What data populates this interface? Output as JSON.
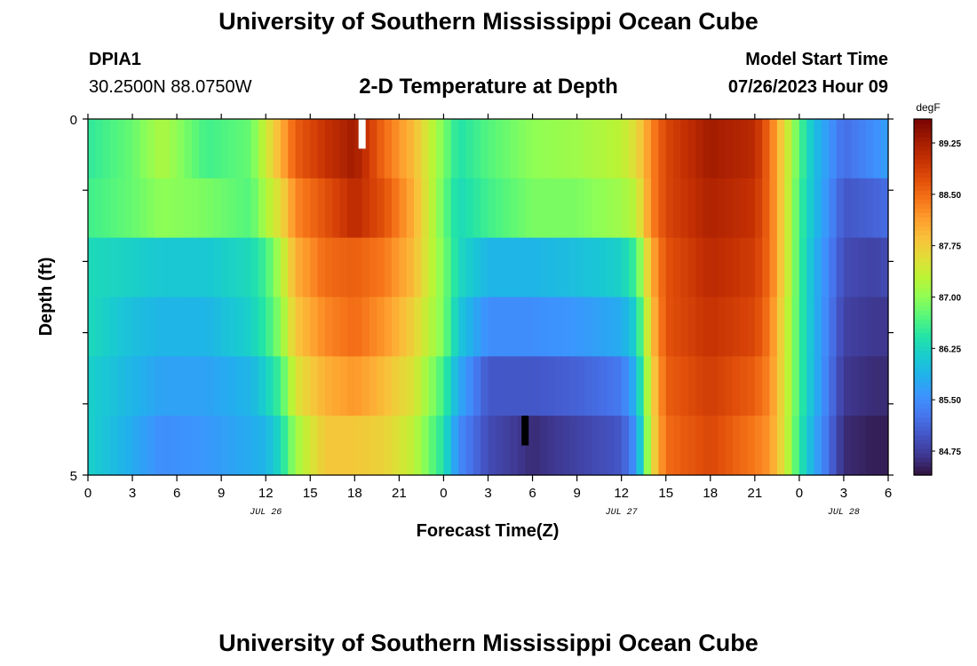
{
  "header": {
    "title": "University of Southern Mississippi Ocean Cube",
    "station_id": "DPIA1",
    "coords": "30.2500N  88.0750W",
    "plot_title": "2-D Temperature at Depth",
    "start_label": "Model Start Time",
    "start_value": "07/26/2023 Hour 09"
  },
  "footer": {
    "title": "University of Southern Mississippi Ocean Cube"
  },
  "chart_data": {
    "type": "heatmap",
    "xlabel": "Forecast Time(Z)",
    "ylabel": "Depth (ft)",
    "x_range_hours": [
      0,
      54
    ],
    "x_tick_labels": [
      "0",
      "3",
      "6",
      "9",
      "12",
      "15",
      "18",
      "21",
      "0",
      "3",
      "6",
      "9",
      "12",
      "15",
      "18",
      "21",
      "0",
      "3",
      "6"
    ],
    "date_labels": [
      {
        "label": "JUL 26",
        "at_hour": 12
      },
      {
        "label": "JUL 27",
        "at_hour": 36
      },
      {
        "label": "JUL 28",
        "at_hour": 51
      }
    ],
    "y_range": [
      0,
      5
    ],
    "y_tick_labels": [
      "0",
      "5"
    ],
    "depth_levels": 6,
    "colorbar": {
      "unit": "degF",
      "min": 84.4,
      "max": 89.6,
      "tick_labels": [
        "84.75",
        "85.50",
        "86.25",
        "87.00",
        "87.75",
        "88.50",
        "89.25"
      ],
      "tick_values": [
        84.75,
        85.5,
        86.25,
        87.0,
        87.75,
        88.5,
        89.25
      ],
      "colors": [
        "#30123b",
        "#3e378f",
        "#4454c4",
        "#4675ed",
        "#3d93fe",
        "#21b0ec",
        "#19cbd0",
        "#22e3a8",
        "#54f67c",
        "#8ffe55",
        "#bbf335",
        "#e1dd37",
        "#f9c13a",
        "#fe9d2e",
        "#f57217",
        "#e04e0a",
        "#c42f03",
        "#a01b01",
        "#7a0403"
      ]
    },
    "profiles": [
      {
        "hour": 0,
        "values": [
          86.5,
          86.6,
          86.3,
          86.3,
          86.2,
          86.2
        ]
      },
      {
        "hour": 3,
        "values": [
          86.8,
          86.8,
          86.2,
          86.0,
          85.9,
          85.8
        ]
      },
      {
        "hour": 5,
        "values": [
          87.2,
          87.0,
          86.1,
          85.9,
          85.7,
          85.5
        ]
      },
      {
        "hour": 8,
        "values": [
          86.6,
          86.9,
          86.1,
          85.9,
          85.7,
          85.6
        ]
      },
      {
        "hour": 11,
        "values": [
          86.8,
          86.7,
          86.3,
          86.2,
          85.9,
          85.8
        ]
      },
      {
        "hour": 12,
        "values": [
          87.4,
          87.2,
          86.6,
          86.5,
          86.2,
          85.9
        ]
      },
      {
        "hour": 13,
        "values": [
          88.0,
          87.6,
          87.2,
          87.0,
          86.6,
          86.3
        ]
      },
      {
        "hour": 14,
        "values": [
          88.6,
          88.3,
          88.0,
          87.8,
          87.5,
          87.1
        ]
      },
      {
        "hour": 16,
        "values": [
          89.0,
          88.7,
          88.5,
          88.3,
          88.0,
          87.8
        ]
      },
      {
        "hour": 18,
        "values": [
          89.3,
          89.1,
          88.6,
          88.5,
          88.2,
          87.8
        ]
      },
      {
        "hour": 20,
        "values": [
          88.5,
          88.7,
          88.4,
          88.2,
          87.9,
          87.7
        ]
      },
      {
        "hour": 22,
        "values": [
          87.9,
          88.0,
          87.9,
          87.7,
          87.5,
          87.3
        ]
      },
      {
        "hour": 24,
        "values": [
          86.9,
          86.8,
          86.9,
          86.9,
          86.6,
          86.4
        ]
      },
      {
        "hour": 25,
        "values": [
          86.4,
          86.3,
          86.3,
          86.1,
          85.8,
          85.5
        ]
      },
      {
        "hour": 27,
        "values": [
          86.7,
          86.6,
          85.9,
          85.5,
          85.0,
          84.9
        ]
      },
      {
        "hour": 30,
        "values": [
          87.0,
          86.9,
          85.9,
          85.5,
          85.0,
          84.6
        ]
      },
      {
        "hour": 33,
        "values": [
          87.1,
          86.9,
          86.0,
          85.6,
          85.1,
          84.8
        ]
      },
      {
        "hour": 36,
        "values": [
          87.3,
          87.1,
          86.2,
          85.8,
          85.3,
          85.0
        ]
      },
      {
        "hour": 37,
        "values": [
          87.6,
          87.3,
          86.6,
          86.2,
          85.9,
          85.6
        ]
      },
      {
        "hour": 38,
        "values": [
          88.3,
          88.3,
          88.0,
          87.8,
          87.6,
          87.5
        ]
      },
      {
        "hour": 39,
        "values": [
          88.8,
          88.8,
          88.7,
          88.7,
          88.6,
          88.5
        ]
      },
      {
        "hour": 42,
        "values": [
          89.3,
          89.2,
          89.1,
          89.0,
          88.9,
          88.8
        ]
      },
      {
        "hour": 45,
        "values": [
          89.1,
          89.0,
          88.9,
          88.8,
          88.6,
          88.4
        ]
      },
      {
        "hour": 46,
        "values": [
          88.5,
          88.5,
          88.5,
          88.4,
          88.3,
          88.2
        ]
      },
      {
        "hour": 47,
        "values": [
          87.6,
          87.6,
          87.6,
          87.5,
          87.5,
          87.5
        ]
      },
      {
        "hour": 48,
        "values": [
          86.7,
          86.6,
          86.6,
          86.6,
          86.6,
          86.5
        ]
      },
      {
        "hour": 49,
        "values": [
          86.0,
          86.0,
          85.9,
          85.9,
          85.9,
          85.8
        ]
      },
      {
        "hour": 51,
        "values": [
          85.2,
          85.0,
          84.9,
          84.8,
          84.7,
          84.6
        ]
      },
      {
        "hour": 53,
        "values": [
          85.5,
          85.1,
          84.8,
          84.7,
          84.6,
          84.5
        ]
      },
      {
        "hour": 54,
        "values": [
          85.7,
          85.2,
          84.9,
          84.7,
          84.6,
          84.5
        ]
      }
    ],
    "markers": [
      {
        "hour": 18.5,
        "level": 0,
        "color": "#ffffff"
      },
      {
        "hour": 29.5,
        "level": 5,
        "color": "#000000"
      }
    ]
  }
}
